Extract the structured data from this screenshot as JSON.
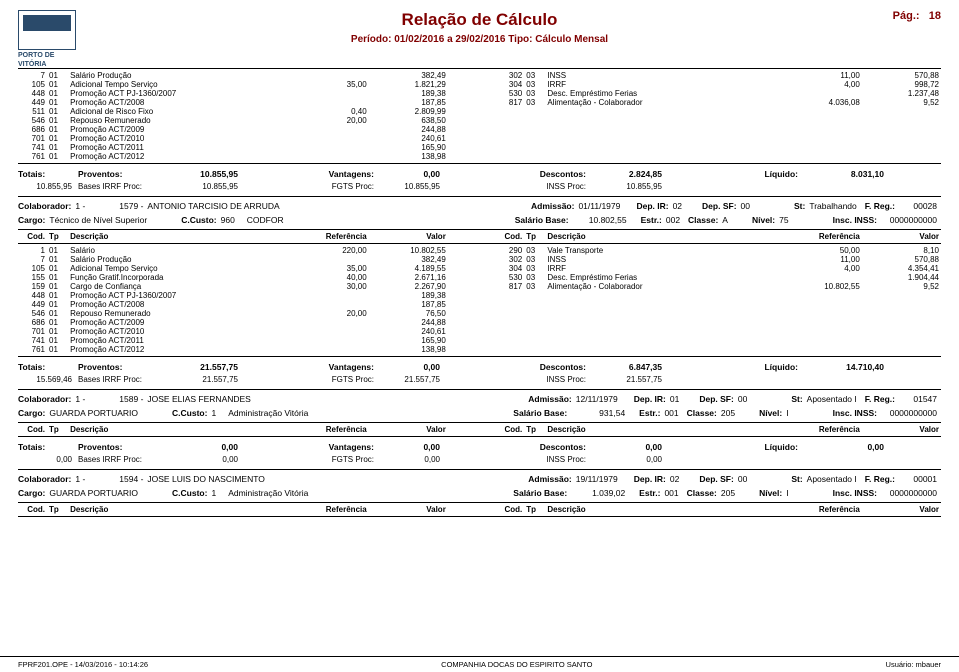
{
  "header": {
    "title": "Relação de Cálculo",
    "page_label": "Pág.:",
    "page_no": "18",
    "period": "Período: 01/02/2016 a 29/02/2016    Tipo: Cálculo Mensal",
    "logo_line1": "PORTO DE",
    "logo_line2": "VITÓRIA"
  },
  "block1_left": [
    {
      "a": "7",
      "b": "01",
      "c": "Salário Produção",
      "d": "",
      "e": "382,49"
    },
    {
      "a": "105",
      "b": "01",
      "c": "Adicional Tempo Serviço",
      "d": "35,00",
      "e": "1.821,29"
    },
    {
      "a": "448",
      "b": "01",
      "c": "Promoção ACT PJ-1360/2007",
      "d": "",
      "e": "189,38"
    },
    {
      "a": "449",
      "b": "01",
      "c": "Promoção ACT/2008",
      "d": "",
      "e": "187,85"
    },
    {
      "a": "511",
      "b": "01",
      "c": "Adicional de Risco Fixo",
      "d": "0,40",
      "e": "2.809,99"
    },
    {
      "a": "546",
      "b": "01",
      "c": "Repouso Remunerado",
      "d": "20,00",
      "e": "638,50"
    },
    {
      "a": "686",
      "b": "01",
      "c": "Promoção ACT/2009",
      "d": "",
      "e": "244,88"
    },
    {
      "a": "701",
      "b": "01",
      "c": "Promoção ACT/2010",
      "d": "",
      "e": "240,61"
    },
    {
      "a": "741",
      "b": "01",
      "c": "Promoção ACT/2011",
      "d": "",
      "e": "165,90"
    },
    {
      "a": "761",
      "b": "01",
      "c": "Promoção ACT/2012",
      "d": "",
      "e": "138,98"
    }
  ],
  "block1_right": [
    {
      "a": "302",
      "b": "03",
      "c": "INSS",
      "d": "11,00",
      "e": "570,88"
    },
    {
      "a": "304",
      "b": "03",
      "c": "IRRF",
      "d": "4,00",
      "e": "998,72"
    },
    {
      "a": "530",
      "b": "03",
      "c": "Desc. Empréstimo Ferias",
      "d": "",
      "e": "1.237,48"
    },
    {
      "a": "817",
      "b": "03",
      "c": "Alimentação - Colaborador",
      "d": "4.036,08",
      "e": "9,52"
    }
  ],
  "block1_tot": {
    "l1": {
      "totais": "Totais:",
      "prov_l": "Proventos:",
      "prov": "10.855,95",
      "vant_l": "Vantagens:",
      "vant": "0,00",
      "desc_l": "Descontos:",
      "desc": "2.824,85",
      "liq_l": "Líquido:",
      "liq": "8.031,10"
    },
    "l2": {
      "a": "10.855,95",
      "birrf_l": "Bases IRRF Proc:",
      "birrf": "10.855,95",
      "fgts_l": "FGTS Proc:",
      "fgts": "10.855,95",
      "inss_l": "INSS Proc:",
      "inss": "10.855,95"
    }
  },
  "collab2": {
    "l1": {
      "colab_l": "Colaborador:",
      "colab": "1 -",
      "num": "1579 -",
      "nome": "ANTONIO TARCISIO DE ARRUDA",
      "adm_l": "Admissão:",
      "adm": "01/11/1979",
      "depir_l": "Dep. IR:",
      "depir": "02",
      "depsf_l": "Dep. SF:",
      "depsf": "00",
      "st_l": "St:",
      "st": "Trabalhando",
      "freg_l": "F. Reg.:",
      "freg": "00028"
    },
    "l2": {
      "cargo_l": "Cargo:",
      "cargo": "Técnico de Nível Superior",
      "custo_l": "C.Custo:",
      "custo": "960",
      "cc": "CODFOR",
      "sal_l": "Salário Base:",
      "sal": "10.802,55",
      "estr_l": "Estr.:",
      "estr": "002",
      "classe_l": "Classe:",
      "classe": "A",
      "nivel_l": "Nível:",
      "nivel": "75",
      "inss_l": "Insc. INSS:",
      "inss": "0000000000"
    }
  },
  "hdr": {
    "cod": "Cod.",
    "tp": "Tp",
    "desc": "Descrição",
    "ref": "Referência",
    "val": "Valor"
  },
  "block2_left": [
    {
      "a": "1",
      "b": "01",
      "c": "Salário",
      "d": "220,00",
      "e": "10.802,55"
    },
    {
      "a": "7",
      "b": "01",
      "c": "Salário Produção",
      "d": "",
      "e": "382,49"
    },
    {
      "a": "105",
      "b": "01",
      "c": "Adicional Tempo Serviço",
      "d": "35,00",
      "e": "4.189,55"
    },
    {
      "a": "155",
      "b": "01",
      "c": "Função Gratif.Incorporada",
      "d": "40,00",
      "e": "2.671,16"
    },
    {
      "a": "159",
      "b": "01",
      "c": "Cargo de Confiança",
      "d": "30,00",
      "e": "2.267,90"
    },
    {
      "a": "448",
      "b": "01",
      "c": "Promoção ACT PJ-1360/2007",
      "d": "",
      "e": "189,38"
    },
    {
      "a": "449",
      "b": "01",
      "c": "Promoção ACT/2008",
      "d": "",
      "e": "187,85"
    },
    {
      "a": "546",
      "b": "01",
      "c": "Repouso Remunerado",
      "d": "20,00",
      "e": "76,50"
    },
    {
      "a": "686",
      "b": "01",
      "c": "Promoção ACT/2009",
      "d": "",
      "e": "244,88"
    },
    {
      "a": "701",
      "b": "01",
      "c": "Promoção ACT/2010",
      "d": "",
      "e": "240,61"
    },
    {
      "a": "741",
      "b": "01",
      "c": "Promoção ACT/2011",
      "d": "",
      "e": "165,90"
    },
    {
      "a": "761",
      "b": "01",
      "c": "Promoção ACT/2012",
      "d": "",
      "e": "138,98"
    }
  ],
  "block2_right": [
    {
      "a": "290",
      "b": "03",
      "c": "Vale Transporte",
      "d": "50,00",
      "e": "8,10"
    },
    {
      "a": "302",
      "b": "03",
      "c": "INSS",
      "d": "11,00",
      "e": "570,88"
    },
    {
      "a": "304",
      "b": "03",
      "c": "IRRF",
      "d": "4,00",
      "e": "4.354,41"
    },
    {
      "a": "530",
      "b": "03",
      "c": "Desc. Empréstimo Ferias",
      "d": "",
      "e": "1.904,44"
    },
    {
      "a": "817",
      "b": "03",
      "c": "Alimentação - Colaborador",
      "d": "10.802,55",
      "e": "9,52"
    }
  ],
  "block2_tot": {
    "l1": {
      "totais": "Totais:",
      "prov_l": "Proventos:",
      "prov": "21.557,75",
      "vant_l": "Vantagens:",
      "vant": "0,00",
      "desc_l": "Descontos:",
      "desc": "6.847,35",
      "liq_l": "Líquido:",
      "liq": "14.710,40"
    },
    "l2": {
      "a": "15.569,46",
      "birrf_l": "Bases IRRF Proc:",
      "birrf": "21.557,75",
      "fgts_l": "FGTS Proc:",
      "fgts": "21.557,75",
      "inss_l": "INSS Proc:",
      "inss": "21.557,75"
    }
  },
  "collab3": {
    "l1": {
      "colab_l": "Colaborador:",
      "colab": "1 -",
      "num": "1589 -",
      "nome": "JOSE ELIAS FERNANDES",
      "adm_l": "Admissão:",
      "adm": "12/11/1979",
      "depir_l": "Dep. IR:",
      "depir": "01",
      "depsf_l": "Dep. SF:",
      "depsf": "00",
      "st_l": "St:",
      "st": "Aposentado I",
      "freg_l": "F. Reg.:",
      "freg": "01547"
    },
    "l2": {
      "cargo_l": "Cargo:",
      "cargo": "GUARDA PORTUARIO",
      "custo_l": "C.Custo:",
      "custo": "1",
      "cc": "Administração Vitória",
      "sal_l": "Salário Base:",
      "sal": "931,54",
      "estr_l": "Estr.:",
      "estr": "001",
      "classe_l": "Classe:",
      "classe": "205",
      "nivel_l": "Nível:",
      "nivel": "I",
      "inss_l": "Insc. INSS:",
      "inss": "0000000000"
    }
  },
  "block3_tot": {
    "l1": {
      "totais": "Totais:",
      "prov_l": "Proventos:",
      "prov": "0,00",
      "vant_l": "Vantagens:",
      "vant": "0,00",
      "desc_l": "Descontos:",
      "desc": "0,00",
      "liq_l": "Líquido:",
      "liq": "0,00"
    },
    "l2": {
      "a": "0,00",
      "birrf_l": "Bases IRRF Proc:",
      "birrf": "0,00",
      "fgts_l": "FGTS Proc:",
      "fgts": "0,00",
      "inss_l": "INSS Proc:",
      "inss": "0,00"
    }
  },
  "collab4": {
    "l1": {
      "colab_l": "Colaborador:",
      "colab": "1 -",
      "num": "1594 -",
      "nome": "JOSE LUIS DO NASCIMENTO",
      "adm_l": "Admissão:",
      "adm": "19/11/1979",
      "depir_l": "Dep. IR:",
      "depir": "02",
      "depsf_l": "Dep. SF:",
      "depsf": "00",
      "st_l": "St:",
      "st": "Aposentado I",
      "freg_l": "F. Reg.:",
      "freg": "00001"
    },
    "l2": {
      "cargo_l": "Cargo:",
      "cargo": "GUARDA PORTUARIO",
      "custo_l": "C.Custo:",
      "custo": "1",
      "cc": "Administração Vitória",
      "sal_l": "Salário Base:",
      "sal": "1.039,02",
      "estr_l": "Estr.:",
      "estr": "001",
      "classe_l": "Classe:",
      "classe": "205",
      "nivel_l": "Nível:",
      "nivel": "I",
      "inss_l": "Insc. INSS:",
      "inss": "0000000000"
    }
  },
  "footer": {
    "left": "FPRF201.OPE - 14/03/2016 - 10:14:26",
    "center": "COMPANHIA DOCAS DO ESPIRITO SANTO",
    "right": "Usuário: mbauer"
  }
}
